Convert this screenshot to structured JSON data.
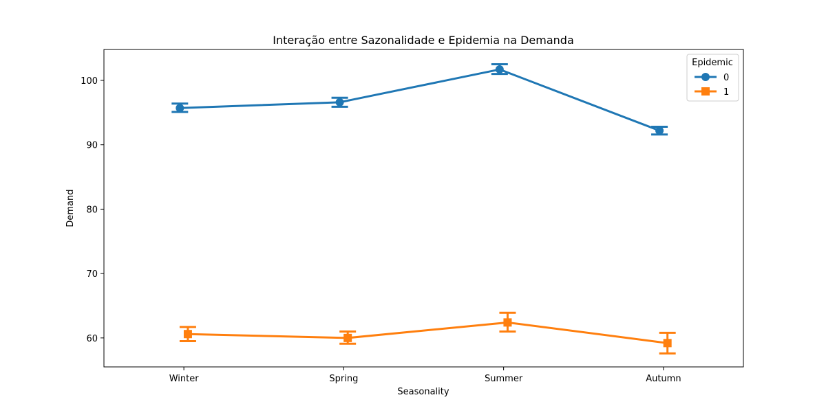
{
  "chart_data": {
    "type": "line",
    "title": "Interação entre Sazonalidade e Epidemia na Demanda",
    "xlabel": "Seasonality",
    "ylabel": "Demand",
    "categories": [
      "Winter",
      "Spring",
      "Summer",
      "Autumn"
    ],
    "ylim": [
      55.5,
      104.8
    ],
    "yticks": [
      60,
      70,
      80,
      90,
      100
    ],
    "grid": false,
    "legend": {
      "title": "Epidemic",
      "placement": "top-right"
    },
    "series": [
      {
        "name": "0",
        "color": "#1f77b4",
        "marker": "circle",
        "values": [
          95.7,
          96.6,
          101.7,
          92.2
        ],
        "ci_low": [
          95.1,
          95.9,
          101.0,
          91.6
        ],
        "ci_high": [
          96.4,
          97.3,
          102.5,
          92.8
        ]
      },
      {
        "name": "1",
        "color": "#ff7f0e",
        "marker": "square",
        "values": [
          60.6,
          60.0,
          62.4,
          59.2
        ],
        "ci_low": [
          59.5,
          59.1,
          61.0,
          57.6
        ],
        "ci_high": [
          61.7,
          61.0,
          63.9,
          60.8
        ]
      }
    ]
  }
}
